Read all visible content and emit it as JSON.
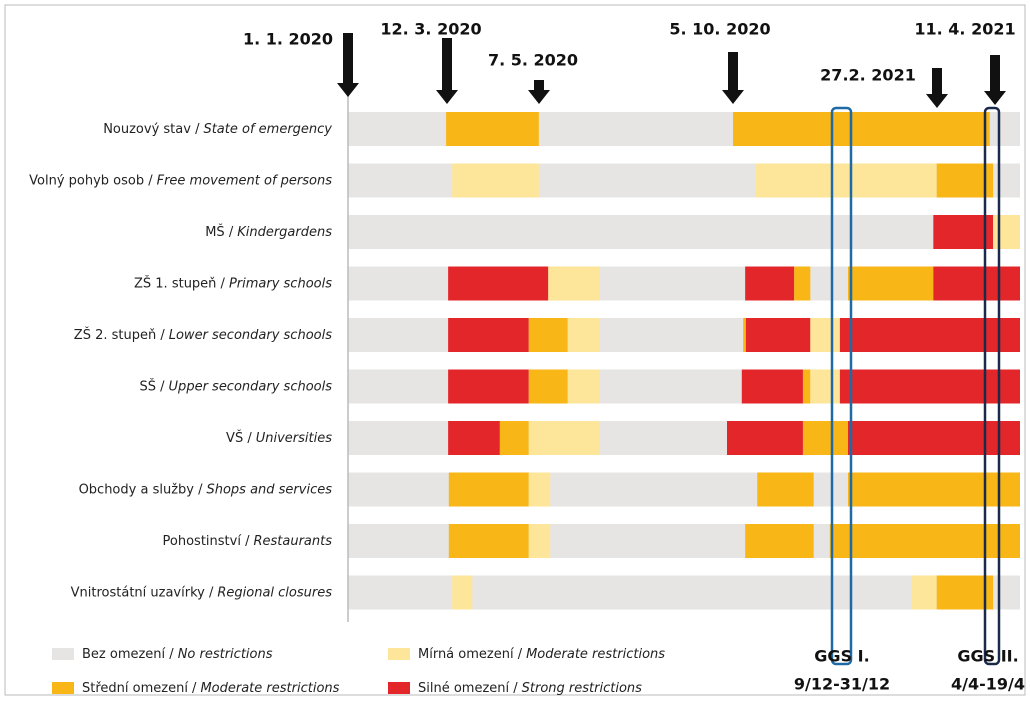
{
  "chart_data": {
    "type": "timeline",
    "xlim": [
      0,
      100
    ],
    "legend": [
      {
        "name": "Bez omezení /",
        "name_en": "No restrictions",
        "color": "#e6e5e3"
      },
      {
        "name": "Mírná omezení /",
        "name_en": "Moderate restrictions",
        "color": "#fde69a"
      },
      {
        "name": "Střední omezení /",
        "name_en": "Moderate restrictions",
        "color": "#f9b617"
      },
      {
        "name": "Silné omezení /",
        "name_en": "Strong restrictions",
        "color": "#e3262a"
      }
    ],
    "rows": [
      {
        "name": "Nouzový stav /",
        "name_en": "State of emergency",
        "segments": [
          {
            "level": 2,
            "start": 14.6,
            "end": 28.4
          },
          {
            "level": 2,
            "start": 57.3,
            "end": 95.5
          }
        ]
      },
      {
        "name": "Volný pohyb osob /",
        "name_en": "Free movement of persons",
        "segments": [
          {
            "level": 1,
            "start": 15.5,
            "end": 28.4
          },
          {
            "level": 1,
            "start": 60.7,
            "end": 87.6
          },
          {
            "level": 2,
            "start": 87.6,
            "end": 96.0
          }
        ]
      },
      {
        "name": "MŠ /",
        "name_en": "Kindergardens",
        "segments": [
          {
            "level": 3,
            "start": 87.1,
            "end": 96.0
          },
          {
            "level": 1,
            "start": 96.0,
            "end": 100
          }
        ]
      },
      {
        "name": "ZŠ 1. stupeň /",
        "name_en": "Primary schools",
        "segments": [
          {
            "level": 3,
            "start": 14.9,
            "end": 29.8
          },
          {
            "level": 1,
            "start": 29.8,
            "end": 37.5
          },
          {
            "level": 3,
            "start": 59.1,
            "end": 66.4
          },
          {
            "level": 2,
            "start": 66.4,
            "end": 68.8
          },
          {
            "level": 2,
            "start": 74.4,
            "end": 87.1
          },
          {
            "level": 3,
            "start": 87.1,
            "end": 100
          }
        ]
      },
      {
        "name": "ZŠ 2. stupeň /",
        "name_en": "Lower secondary schools",
        "segments": [
          {
            "level": 3,
            "start": 14.9,
            "end": 26.9
          },
          {
            "level": 2,
            "start": 26.9,
            "end": 32.7
          },
          {
            "level": 1,
            "start": 32.7,
            "end": 37.5
          },
          {
            "level": 2,
            "start": 58.8,
            "end": 59.2
          },
          {
            "level": 3,
            "start": 59.2,
            "end": 68.8
          },
          {
            "level": 1,
            "start": 68.8,
            "end": 73.2
          },
          {
            "level": 3,
            "start": 73.2,
            "end": 100
          }
        ]
      },
      {
        "name": "SŠ /",
        "name_en": "Upper secondary schools",
        "segments": [
          {
            "level": 3,
            "start": 14.9,
            "end": 26.9
          },
          {
            "level": 2,
            "start": 26.9,
            "end": 32.7
          },
          {
            "level": 1,
            "start": 32.7,
            "end": 37.5
          },
          {
            "level": 3,
            "start": 58.6,
            "end": 67.7
          },
          {
            "level": 2,
            "start": 67.7,
            "end": 68.8
          },
          {
            "level": 1,
            "start": 68.8,
            "end": 73.2
          },
          {
            "level": 3,
            "start": 73.2,
            "end": 100
          }
        ]
      },
      {
        "name": "VŠ /",
        "name_en": "Universities",
        "segments": [
          {
            "level": 3,
            "start": 14.9,
            "end": 22.6
          },
          {
            "level": 2,
            "start": 22.6,
            "end": 26.9
          },
          {
            "level": 1,
            "start": 26.9,
            "end": 37.5
          },
          {
            "level": 3,
            "start": 56.4,
            "end": 67.7
          },
          {
            "level": 2,
            "start": 67.7,
            "end": 74.4
          },
          {
            "level": 3,
            "start": 74.4,
            "end": 100
          }
        ]
      },
      {
        "name": "Obchody a služby /",
        "name_en": "Shops and services",
        "segments": [
          {
            "level": 2,
            "start": 15.0,
            "end": 26.9
          },
          {
            "level": 1,
            "start": 26.9,
            "end": 30.1
          },
          {
            "level": 2,
            "start": 60.9,
            "end": 69.3
          },
          {
            "level": 2,
            "start": 74.4,
            "end": 100
          }
        ]
      },
      {
        "name": "Pohostinství /",
        "name_en": "Restaurants",
        "segments": [
          {
            "level": 2,
            "start": 15.0,
            "end": 26.9
          },
          {
            "level": 1,
            "start": 26.9,
            "end": 30.1
          },
          {
            "level": 2,
            "start": 59.1,
            "end": 69.3
          },
          {
            "level": 2,
            "start": 71.7,
            "end": 100
          }
        ]
      },
      {
        "name": "Vnitrostátní uzavírky /",
        "name_en": "Regional closures",
        "segments": [
          {
            "level": 1,
            "start": 15.5,
            "end": 18.5
          },
          {
            "level": 1,
            "start": 83.9,
            "end": 87.6
          },
          {
            "level": 2,
            "start": 87.6,
            "end": 96.0
          }
        ]
      }
    ],
    "annotations": [
      "1. 1. 2020",
      "12. 3. 2020",
      "7. 5. 2020",
      "5. 10. 2020",
      "27.2. 2021",
      "11. 4. 2021"
    ],
    "periods": [
      {
        "name": "GGS I.",
        "range": "9/12-31/12"
      },
      {
        "name": "GGS II.",
        "range": "4/4-19/4"
      }
    ]
  }
}
